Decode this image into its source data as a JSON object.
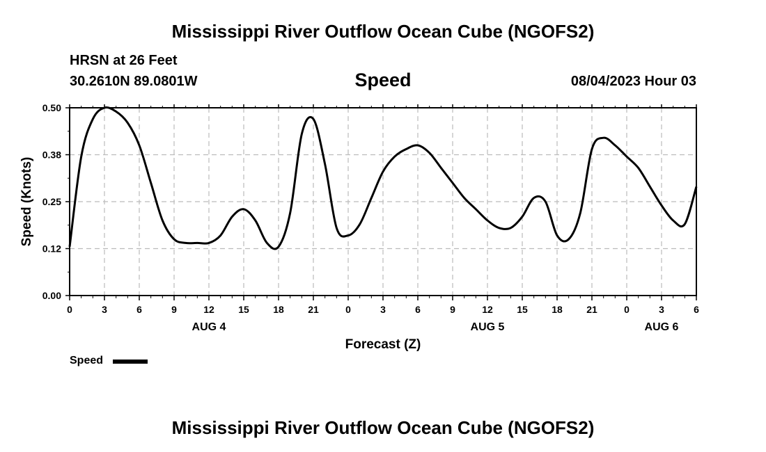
{
  "header": {
    "title": "Mississippi River Outflow Ocean Cube (NGOFS2)",
    "station": "HRSN at 26 Feet",
    "coords": "30.2610N  89.0801W",
    "variable": "Speed",
    "datetime": "08/04/2023 Hour 03"
  },
  "footer": {
    "title": "Mississippi River Outflow Ocean Cube (NGOFS2)"
  },
  "legend": {
    "label": "Speed",
    "color": "#000000"
  },
  "chart_data": {
    "type": "line",
    "title": "Speed",
    "xlabel": "Forecast (Z)",
    "ylabel": "Speed (Knots)",
    "ylim": [
      0,
      0.5
    ],
    "xlim": [
      0,
      54
    ],
    "y_ticks": [
      "0.00",
      "0.12",
      "0.25",
      "0.38",
      "0.50"
    ],
    "x_tick_labels": [
      "0",
      "3",
      "6",
      "9",
      "12",
      "15",
      "18",
      "21",
      "0",
      "3",
      "6",
      "9",
      "12",
      "15",
      "18",
      "21",
      "0",
      "3",
      "6"
    ],
    "date_labels": [
      {
        "label": "AUG 4",
        "at_hour": 12
      },
      {
        "label": "AUG 5",
        "at_hour": 36
      },
      {
        "label": "AUG 6",
        "at_hour": 51
      }
    ],
    "grid": true,
    "legend_position": "bottom-left",
    "series": [
      {
        "name": "Speed",
        "x": [
          0,
          1,
          2,
          3,
          4,
          5,
          6,
          7,
          8,
          9,
          10,
          11,
          12,
          13,
          14,
          15,
          16,
          17,
          18,
          19,
          20,
          21,
          22,
          23,
          24,
          25,
          26,
          27,
          28,
          29,
          30,
          31,
          32,
          33,
          34,
          35,
          36,
          37,
          38,
          39,
          40,
          41,
          42,
          43,
          44,
          45,
          46,
          47,
          48,
          49,
          50,
          51,
          52,
          53,
          54
        ],
        "y": [
          0.13,
          0.37,
          0.47,
          0.5,
          0.49,
          0.46,
          0.4,
          0.3,
          0.2,
          0.15,
          0.14,
          0.14,
          0.14,
          0.16,
          0.21,
          0.23,
          0.2,
          0.14,
          0.13,
          0.22,
          0.43,
          0.47,
          0.35,
          0.18,
          0.16,
          0.19,
          0.26,
          0.33,
          0.37,
          0.39,
          0.4,
          0.38,
          0.34,
          0.3,
          0.26,
          0.23,
          0.2,
          0.18,
          0.18,
          0.21,
          0.26,
          0.25,
          0.16,
          0.15,
          0.22,
          0.39,
          0.42,
          0.4,
          0.37,
          0.34,
          0.29,
          0.24,
          0.2,
          0.19,
          0.29
        ]
      }
    ]
  }
}
